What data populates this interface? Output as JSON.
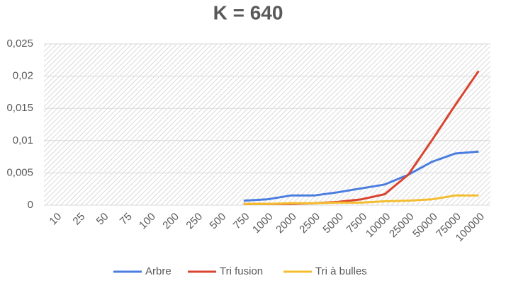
{
  "chart_data": {
    "type": "line",
    "title": "K = 640",
    "categories": [
      "10",
      "25",
      "50",
      "75",
      "100",
      "200",
      "250",
      "500",
      "750",
      "1000",
      "2000",
      "2500",
      "5000",
      "7500",
      "10000",
      "25000",
      "50000",
      "75000",
      "100000"
    ],
    "series": [
      {
        "name": "Arbre",
        "color": "#4a7de0",
        "values": [
          null,
          null,
          null,
          null,
          null,
          null,
          null,
          null,
          0.0007,
          0.0009,
          0.0015,
          0.0015,
          0.002,
          0.0026,
          0.0032,
          0.0047,
          0.0067,
          0.008,
          0.0083
        ]
      },
      {
        "name": "Tri fusion",
        "color": "#d9432f",
        "values": [
          null,
          null,
          null,
          null,
          null,
          null,
          null,
          null,
          0.0002,
          0.0002,
          0.0002,
          0.0003,
          0.0005,
          0.0009,
          0.0017,
          0.0047,
          0.01,
          0.0155,
          0.0208
        ]
      },
      {
        "name": "Tri à bulles",
        "color": "#f4bd2f",
        "values": [
          null,
          null,
          null,
          null,
          null,
          null,
          null,
          null,
          0.0002,
          0.0002,
          0.0003,
          0.0003,
          0.0004,
          0.0004,
          0.0006,
          0.0007,
          0.0009,
          0.0015,
          0.0015
        ]
      }
    ],
    "ylim": [
      0,
      0.025
    ],
    "yticks": [
      0,
      {
        "value": 0.005,
        "label": "0,005"
      },
      {
        "value": 0.01,
        "label": "0,01"
      },
      {
        "value": 0.015,
        "label": "0,015"
      },
      {
        "value": 0.02,
        "label": "0,02"
      },
      {
        "value": 0.025,
        "label": "0,025"
      }
    ],
    "grid": true,
    "legend": "bottom"
  }
}
